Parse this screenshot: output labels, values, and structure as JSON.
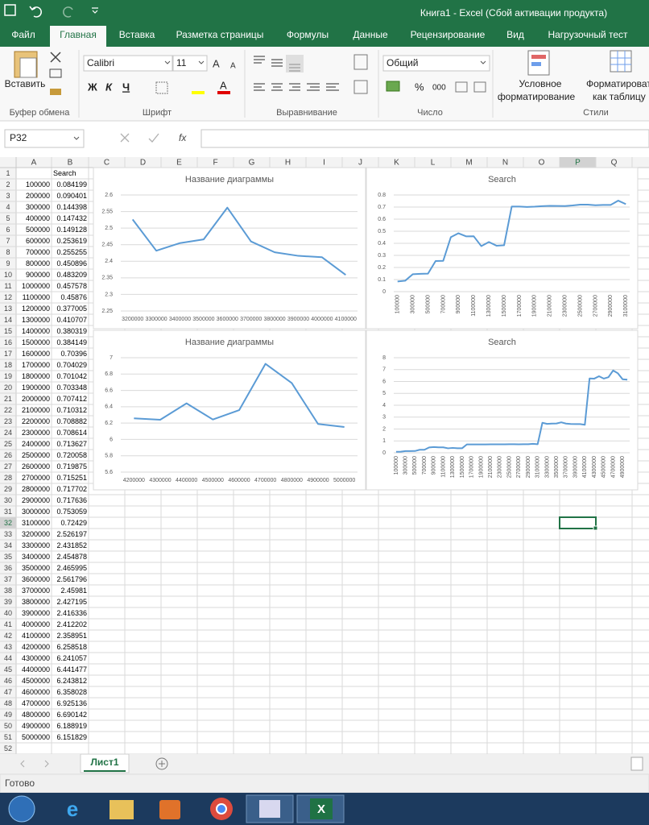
{
  "title_bar": {
    "title": "Книга1 - Excel (Сбой активации продукта)"
  },
  "tabs": [
    "Файл",
    "Главная",
    "Вставка",
    "Разметка страницы",
    "Формулы",
    "Данные",
    "Рецензирование",
    "Вид",
    "Нагрузочный тест"
  ],
  "ribbon": {
    "paste": "Вставить",
    "font_name": "Calibri",
    "font_size": 11,
    "bold": "Ж",
    "italic": "К",
    "underline": "Ч",
    "percent": "%",
    "thousands": "000",
    "number_format": "Общий",
    "conditional_formatting": [
      "Условное",
      "форматирование"
    ],
    "format_as_table": [
      "Форматировать",
      "как таблицу"
    ],
    "groups": [
      "Буфер обмена",
      "Шрифт",
      "Выравнивание",
      "Число",
      "Стили"
    ]
  },
  "name_box": "P32",
  "fx": "fx",
  "columns": [
    "A",
    "B",
    "C",
    "D",
    "E",
    "F",
    "G",
    "H",
    "I",
    "J",
    "K",
    "L",
    "M",
    "N",
    "O",
    "P",
    "Q"
  ],
  "rows": [
    1,
    2,
    3,
    4,
    5,
    6,
    7,
    8,
    9,
    10,
    11,
    12,
    13,
    14,
    15,
    16,
    17,
    18,
    19,
    20,
    21,
    22,
    23,
    24,
    25,
    26,
    27,
    28,
    29,
    30,
    31,
    32,
    33,
    34,
    35,
    36,
    37,
    38,
    39,
    40,
    41,
    42,
    43,
    44,
    45,
    46,
    47,
    48,
    49,
    50,
    51,
    52
  ],
  "cells": {
    "B1": "Search",
    "A": [
      100000,
      200000,
      300000,
      400000,
      500000,
      600000,
      700000,
      800000,
      900000,
      1000000,
      1100000,
      1200000,
      1300000,
      1400000,
      1500000,
      1600000,
      1700000,
      1800000,
      1900000,
      2000000,
      2100000,
      2200000,
      2300000,
      2400000,
      2500000,
      2600000,
      2700000,
      2800000,
      2900000,
      3000000,
      3100000,
      3200000,
      3300000,
      3400000,
      3500000,
      3600000,
      3700000,
      3800000,
      3900000,
      4000000,
      4100000,
      4200000,
      4300000,
      4400000,
      4500000,
      4600000,
      4700000,
      4800000,
      4900000,
      5000000
    ],
    "B": [
      0.084199,
      0.090401,
      0.144398,
      0.147432,
      0.149128,
      0.253619,
      0.255255,
      0.450896,
      0.483209,
      0.457578,
      0.45876,
      0.377005,
      0.410707,
      0.380319,
      0.384149,
      0.70396,
      0.704029,
      0.701042,
      0.703348,
      0.707412,
      0.710312,
      0.708882,
      0.708614,
      0.713627,
      0.720058,
      0.719875,
      0.715251,
      0.717702,
      0.717636,
      0.753059,
      0.72429,
      2.526197,
      2.431852,
      2.454878,
      2.465995,
      2.561796,
      2.45981,
      2.427195,
      2.416336,
      2.412202,
      2.358951,
      6.258518,
      6.241057,
      6.441477,
      6.243812,
      6.358028,
      6.925136,
      6.690142,
      6.188919,
      6.151829
    ]
  },
  "charts": [
    {
      "type": "line",
      "title": "Название диаграммы",
      "color": "#5b9bd5",
      "categories": [
        3200000,
        3300000,
        3400000,
        3500000,
        3600000,
        3700000,
        3800000,
        3900000,
        4000000,
        4100000
      ],
      "values": [
        2.526197,
        2.431852,
        2.454878,
        2.465995,
        2.561796,
        2.45981,
        2.427195,
        2.416336,
        2.412202,
        2.358951
      ],
      "xticks": [
        3200000,
        3300000,
        3400000,
        3500000,
        3600000,
        3700000,
        3800000,
        3900000,
        4000000,
        4100000
      ],
      "ylim": [
        2.25,
        2.6
      ],
      "yticks": [
        2.25,
        2.3,
        2.35,
        2.4,
        2.45,
        2.5,
        2.55,
        2.6
      ],
      "grid": true
    },
    {
      "type": "line",
      "title": "Search",
      "color": "#5b9bd5",
      "categories": [
        100000,
        200000,
        300000,
        400000,
        500000,
        600000,
        700000,
        800000,
        900000,
        1000000,
        1100000,
        1200000,
        1300000,
        1400000,
        1500000,
        1600000,
        1700000,
        1800000,
        1900000,
        2000000,
        2100000,
        2200000,
        2300000,
        2400000,
        2500000,
        2600000,
        2700000,
        2800000,
        2900000,
        3000000,
        3100000
      ],
      "values": [
        0.084199,
        0.090401,
        0.144398,
        0.147432,
        0.149128,
        0.253619,
        0.255255,
        0.450896,
        0.483209,
        0.457578,
        0.45876,
        0.377005,
        0.410707,
        0.380319,
        0.384149,
        0.70396,
        0.704029,
        0.701042,
        0.703348,
        0.707412,
        0.710312,
        0.708882,
        0.708614,
        0.713627,
        0.720058,
        0.719875,
        0.715251,
        0.717702,
        0.717636,
        0.753059,
        0.72429
      ],
      "xticks": [
        100000,
        300000,
        500000,
        700000,
        900000,
        1100000,
        1300000,
        1500000,
        1700000,
        1900000,
        2100000,
        2300000,
        2500000,
        2700000,
        2900000,
        3100000
      ],
      "ylim": [
        0,
        0.8
      ],
      "yticks": [
        0,
        0.1,
        0.2,
        0.3,
        0.4,
        0.5,
        0.6,
        0.7,
        0.8
      ],
      "grid": true
    },
    {
      "type": "line",
      "title": "Название диаграммы",
      "color": "#5b9bd5",
      "categories": [
        4200000,
        4300000,
        4400000,
        4500000,
        4600000,
        4700000,
        4800000,
        4900000,
        5000000
      ],
      "values": [
        6.258518,
        6.241057,
        6.441477,
        6.243812,
        6.358028,
        6.925136,
        6.690142,
        6.188919,
        6.151829
      ],
      "xticks": [
        4200000,
        4300000,
        4400000,
        4500000,
        4600000,
        4700000,
        4800000,
        4900000,
        5000000
      ],
      "ylim": [
        5.6,
        7
      ],
      "yticks": [
        5.6,
        5.8,
        6,
        6.2,
        6.4,
        6.6,
        6.8,
        7
      ],
      "grid": true
    },
    {
      "type": "line",
      "title": "Search",
      "color": "#5b9bd5",
      "categories": [
        100000,
        200000,
        300000,
        400000,
        500000,
        600000,
        700000,
        800000,
        900000,
        1000000,
        1100000,
        1200000,
        1300000,
        1400000,
        1500000,
        1600000,
        1700000,
        1800000,
        1900000,
        2000000,
        2100000,
        2200000,
        2300000,
        2400000,
        2500000,
        2600000,
        2700000,
        2800000,
        2900000,
        3000000,
        3100000,
        3200000,
        3300000,
        3400000,
        3500000,
        3600000,
        3700000,
        3800000,
        3900000,
        4000000,
        4100000,
        4200000,
        4300000,
        4400000,
        4500000,
        4600000,
        4700000,
        4800000,
        4900000,
        5000000
      ],
      "values": [
        0.084199,
        0.090401,
        0.144398,
        0.147432,
        0.149128,
        0.253619,
        0.255255,
        0.450896,
        0.483209,
        0.457578,
        0.45876,
        0.377005,
        0.410707,
        0.380319,
        0.384149,
        0.70396,
        0.704029,
        0.701042,
        0.703348,
        0.707412,
        0.710312,
        0.708882,
        0.708614,
        0.713627,
        0.720058,
        0.719875,
        0.715251,
        0.717702,
        0.717636,
        0.753059,
        0.72429,
        2.526197,
        2.431852,
        2.454878,
        2.465995,
        2.561796,
        2.45981,
        2.427195,
        2.416336,
        2.412202,
        2.358951,
        6.258518,
        6.241057,
        6.441477,
        6.243812,
        6.358028,
        6.925136,
        6.690142,
        6.188919,
        6.151829
      ],
      "xticks": [
        100000,
        300000,
        500000,
        700000,
        900000,
        1100000,
        1300000,
        1500000,
        1700000,
        1900000,
        2100000,
        2300000,
        2500000,
        2700000,
        2900000,
        3100000,
        3300000,
        3500000,
        3700000,
        3900000,
        4100000,
        4300000,
        4500000,
        4700000,
        4900000
      ],
      "ylim": [
        0,
        8
      ],
      "yticks": [
        0,
        1,
        2,
        3,
        4,
        5,
        6,
        7,
        8
      ],
      "grid": true
    }
  ],
  "sheet_tab": "Лист1",
  "status": "Готово"
}
